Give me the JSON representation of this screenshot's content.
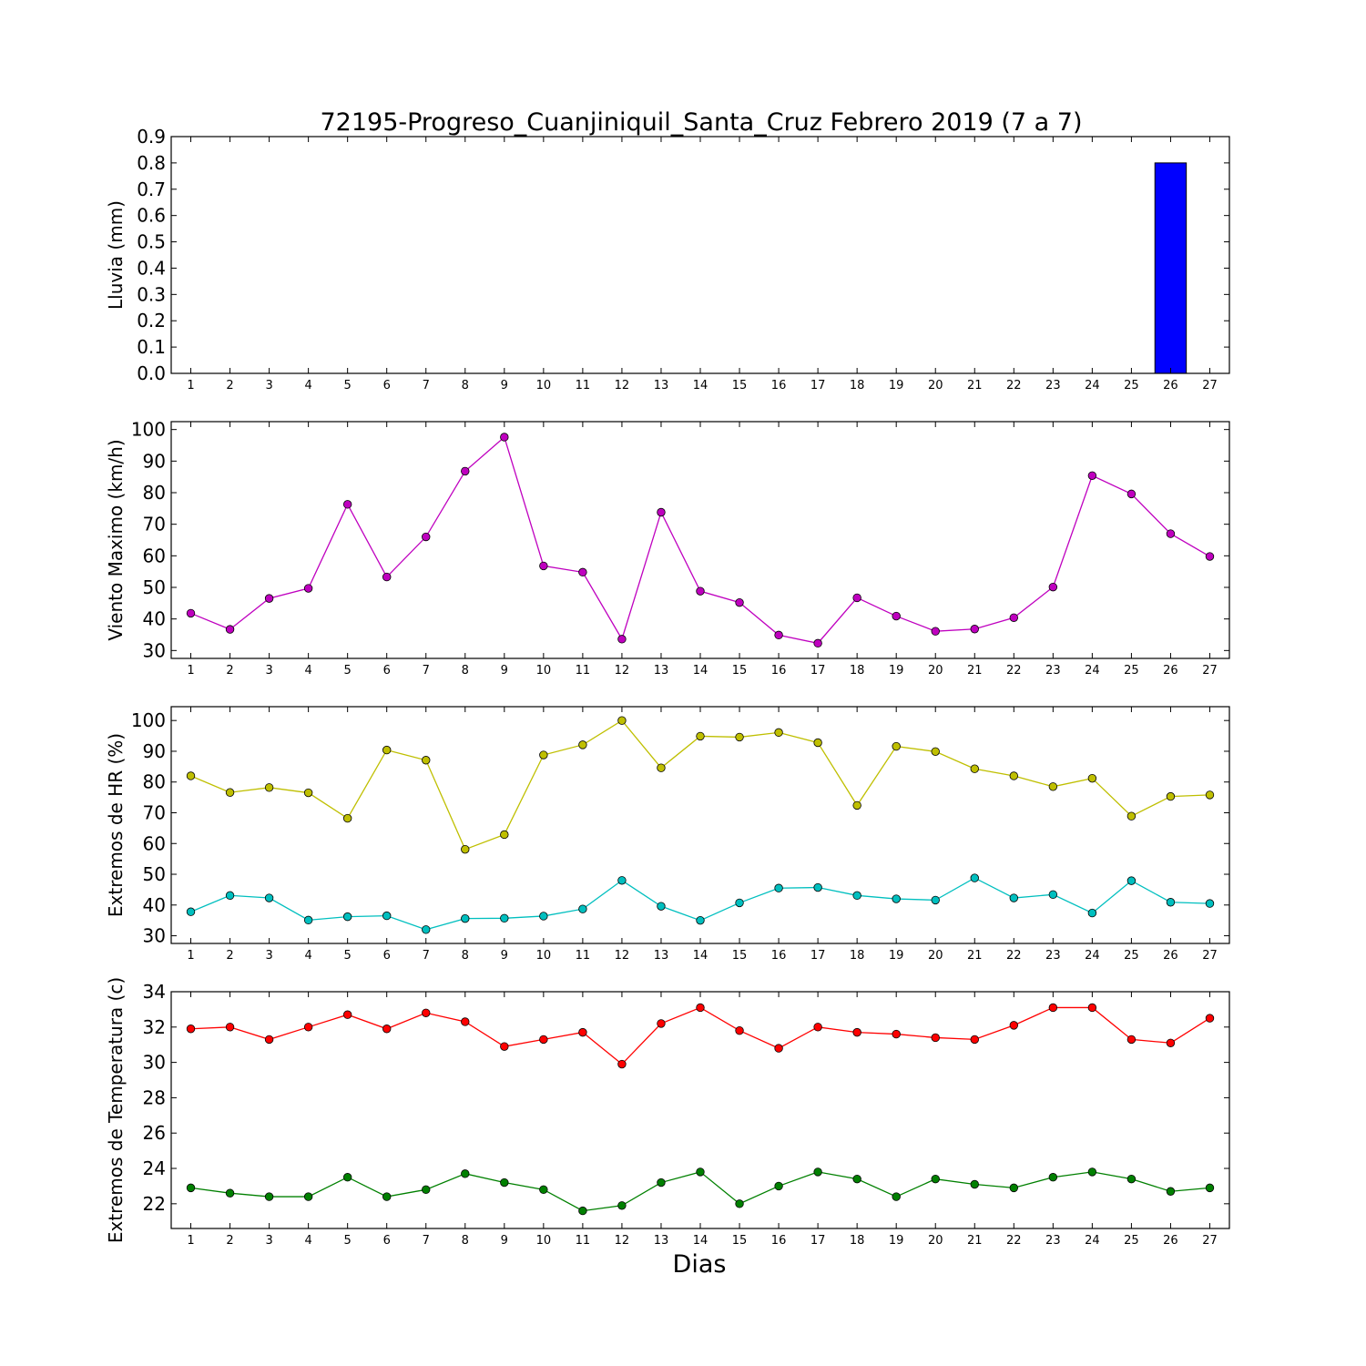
{
  "title": "72195-Progreso_Cuanjiniquil_Santa_Cruz Febrero 2019  (7 a 7)",
  "xlabel": "Dias",
  "chart_data": [
    {
      "type": "bar",
      "ylabel": "Lluvia (mm)",
      "ylim": [
        0.0,
        0.9
      ],
      "yticks": [
        "0.0",
        "0.1",
        "0.2",
        "0.3",
        "0.4",
        "0.5",
        "0.6",
        "0.7",
        "0.8",
        "0.9"
      ],
      "x": [
        1,
        2,
        3,
        4,
        5,
        6,
        7,
        8,
        9,
        10,
        11,
        12,
        13,
        14,
        15,
        16,
        17,
        18,
        19,
        20,
        21,
        22,
        23,
        24,
        25,
        26,
        27
      ],
      "series": [
        {
          "color": "#0000ff",
          "values": [
            0,
            0,
            0,
            0,
            0,
            0,
            0,
            0,
            0,
            0,
            0,
            0,
            0,
            0,
            0,
            0,
            0,
            0,
            0,
            0,
            0,
            0,
            0,
            0,
            0,
            0.8,
            0
          ]
        }
      ]
    },
    {
      "type": "line",
      "ylabel": "Viento Maximo (km/h)",
      "ylim": [
        27.5,
        102.5
      ],
      "yticks": [
        "30",
        "40",
        "50",
        "60",
        "70",
        "80",
        "90",
        "100"
      ],
      "x": [
        1,
        2,
        3,
        4,
        5,
        6,
        7,
        8,
        9,
        10,
        11,
        12,
        13,
        14,
        15,
        16,
        17,
        18,
        19,
        20,
        21,
        22,
        23,
        24,
        25,
        26,
        27
      ],
      "series": [
        {
          "color": "#bf00bf",
          "values": [
            41.8,
            36.7,
            46.5,
            49.7,
            76.3,
            53.3,
            66.0,
            86.8,
            97.6,
            56.8,
            54.8,
            33.6,
            73.8,
            48.8,
            45.2,
            34.9,
            32.3,
            46.7,
            40.9,
            36.1,
            36.8,
            40.4,
            50.1,
            85.4,
            79.6,
            67.0,
            59.8
          ]
        }
      ]
    },
    {
      "type": "line",
      "ylabel": "Extremos de HR (%)",
      "ylim": [
        27.5,
        104.5
      ],
      "yticks": [
        "30",
        "40",
        "50",
        "60",
        "70",
        "80",
        "90",
        "100"
      ],
      "x": [
        1,
        2,
        3,
        4,
        5,
        6,
        7,
        8,
        9,
        10,
        11,
        12,
        13,
        14,
        15,
        16,
        17,
        18,
        19,
        20,
        21,
        22,
        23,
        24,
        25,
        26,
        27
      ],
      "series": [
        {
          "color": "#bfbf00",
          "values": [
            82,
            76.6,
            78.2,
            76.5,
            68.2,
            90.4,
            87.1,
            58.1,
            62.9,
            88.8,
            92.1,
            100,
            84.6,
            94.9,
            94.6,
            96.1,
            92.8,
            72.4,
            91.6,
            89.9,
            84.3,
            82.0,
            78.5,
            81.2,
            68.9,
            75.3,
            75.8
          ]
        },
        {
          "color": "#00bfbf",
          "values": [
            37.8,
            43.1,
            42.3,
            35.1,
            36.2,
            36.5,
            32.0,
            35.6,
            35.7,
            36.4,
            38.7,
            48.0,
            39.6,
            35.0,
            40.7,
            45.5,
            45.7,
            43.1,
            42.0,
            41.6,
            48.8,
            42.3,
            43.4,
            37.4,
            47.9,
            40.9,
            40.5
          ]
        }
      ]
    },
    {
      "type": "line",
      "ylabel": "Extremos de Temperatura (c)",
      "ylim": [
        20.6,
        34.0
      ],
      "yticks": [
        "22",
        "24",
        "26",
        "28",
        "30",
        "32",
        "34"
      ],
      "x": [
        1,
        2,
        3,
        4,
        5,
        6,
        7,
        8,
        9,
        10,
        11,
        12,
        13,
        14,
        15,
        16,
        17,
        18,
        19,
        20,
        21,
        22,
        23,
        24,
        25,
        26,
        27
      ],
      "series": [
        {
          "color": "#ff0000",
          "values": [
            31.9,
            32.0,
            31.3,
            32.0,
            32.7,
            31.9,
            32.8,
            32.3,
            30.9,
            31.3,
            31.7,
            29.9,
            32.2,
            33.1,
            31.8,
            30.8,
            32.0,
            31.7,
            31.6,
            31.4,
            31.3,
            32.1,
            33.1,
            33.1,
            31.3,
            31.1,
            32.5
          ]
        },
        {
          "color": "#008000",
          "values": [
            22.9,
            22.6,
            22.4,
            22.4,
            23.5,
            22.4,
            22.8,
            23.7,
            23.2,
            22.8,
            21.6,
            21.9,
            23.2,
            23.8,
            22.0,
            23.0,
            23.8,
            23.4,
            22.4,
            23.4,
            23.1,
            22.9,
            23.5,
            23.8,
            23.4,
            22.7,
            22.9
          ]
        }
      ]
    }
  ]
}
